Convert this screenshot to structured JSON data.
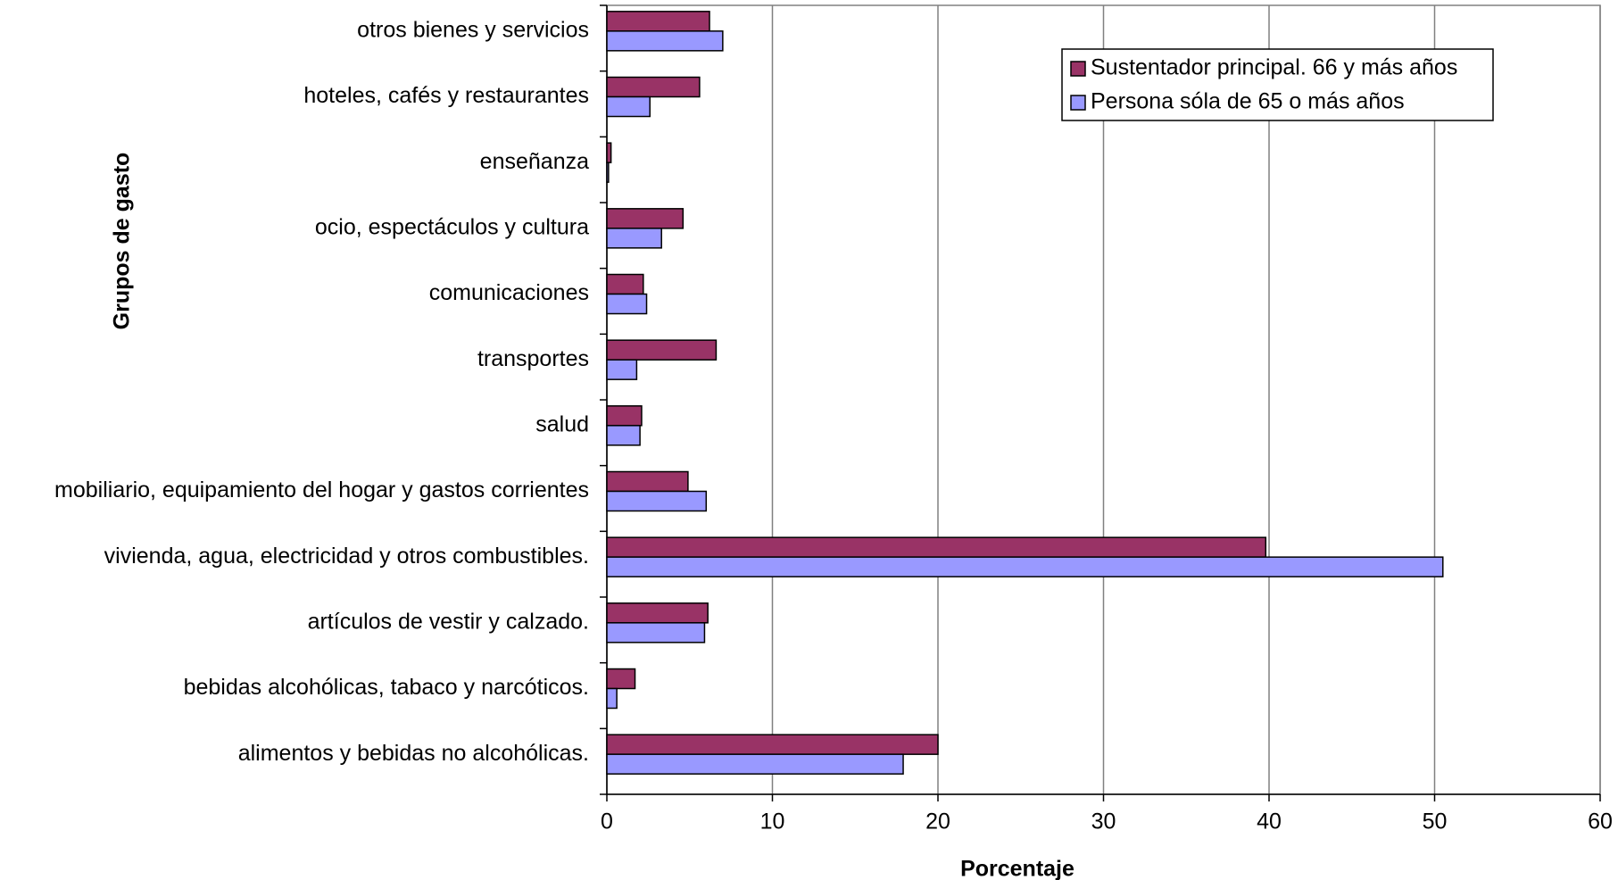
{
  "chart_data": {
    "type": "hbar",
    "x_label": "Porcentaje",
    "y_label": "Grupos de gasto",
    "categories": [
      "alimentos y bebidas no alcohólicas.",
      "bebidas alcohólicas, tabaco y narcóticos.",
      "artículos de vestir y calzado.",
      "vivienda, agua, electricidad y otros combustibles.",
      "mobiliario, equipamiento del hogar y gastos corrientes",
      "salud",
      "transportes",
      "comunicaciones",
      "ocio, espectáculos y cultura",
      "enseñanza",
      "hoteles, cafés y restaurantes",
      "otros bienes y servicios"
    ],
    "series": [
      {
        "name": "Sustentador principal. 66 y más años",
        "color": "#993366",
        "values": [
          20.0,
          1.7,
          6.1,
          39.8,
          4.9,
          2.1,
          6.6,
          2.2,
          4.6,
          0.25,
          5.6,
          6.2
        ]
      },
      {
        "name": "Persona sóla de 65 o más años",
        "color": "#9999ff",
        "values": [
          17.9,
          0.6,
          5.9,
          50.5,
          6.0,
          2.0,
          1.8,
          2.4,
          3.3,
          0.1,
          2.6,
          7.0
        ]
      }
    ],
    "xlim": [
      0,
      60
    ],
    "xticks": [
      0,
      10,
      20,
      30,
      40,
      50,
      60
    ],
    "grid": true,
    "legend_position": "upper right"
  }
}
